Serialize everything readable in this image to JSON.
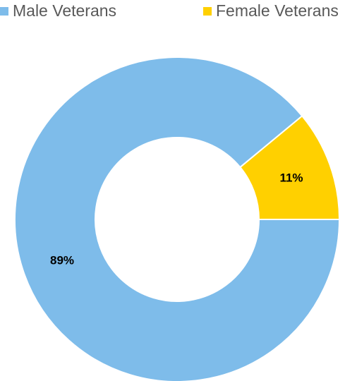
{
  "chart_data": {
    "type": "pie",
    "variant": "donut",
    "legend_position": "top",
    "series": [
      {
        "name": "Male Veterans",
        "value": 89,
        "label": "89%",
        "color": "#7EBCEA"
      },
      {
        "name": "Female Veterans",
        "value": 11,
        "label": "11%",
        "color": "#FFD000"
      }
    ]
  }
}
